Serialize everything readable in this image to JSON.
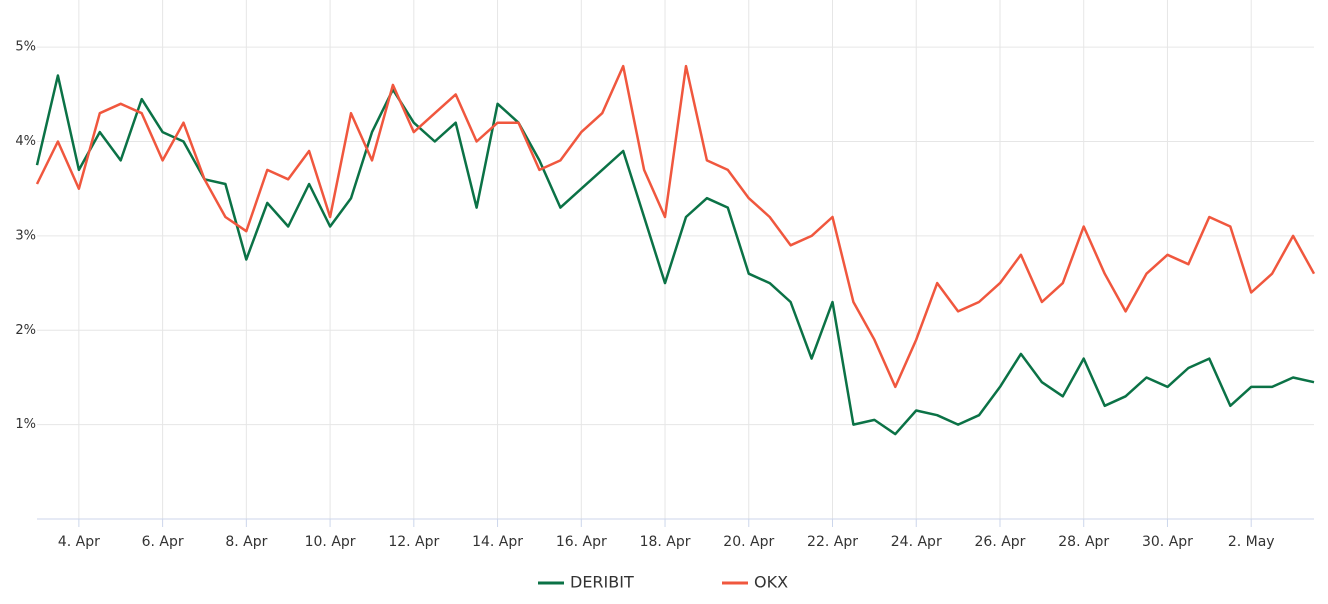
{
  "chart_data": {
    "type": "line",
    "x": [
      3,
      3.5,
      4,
      4.5,
      5,
      5.5,
      6,
      6.5,
      7,
      7.5,
      8,
      8.5,
      9,
      9.5,
      10,
      10.5,
      11,
      11.5,
      12,
      12.5,
      13,
      13.5,
      14,
      14.5,
      15,
      15.5,
      16,
      16.5,
      17,
      17.5,
      18,
      18.5,
      19,
      19.5,
      20,
      20.5,
      21,
      21.5,
      22,
      22.5,
      23,
      23.5,
      24,
      24.5,
      25,
      25.5,
      26,
      26.5,
      27,
      27.5,
      28,
      28.5,
      29,
      29.5,
      30,
      30.5,
      31,
      31.5,
      32,
      32.5,
      33,
      33.5
    ],
    "series": [
      {
        "name": "DERIBIT",
        "color": "#0b7246",
        "values": [
          3.75,
          4.7,
          3.7,
          4.1,
          3.8,
          4.45,
          4.1,
          4.0,
          3.6,
          3.55,
          2.75,
          3.35,
          3.1,
          3.55,
          3.1,
          3.4,
          4.1,
          4.55,
          4.2,
          4.0,
          4.2,
          3.3,
          4.4,
          4.2,
          3.8,
          3.3,
          3.5,
          3.7,
          3.9,
          3.2,
          2.5,
          3.2,
          3.4,
          3.3,
          2.6,
          2.5,
          2.3,
          1.7,
          2.3,
          1.0,
          1.05,
          0.9,
          1.15,
          1.1,
          1.0,
          1.1,
          1.4,
          1.75,
          1.45,
          1.3,
          1.7,
          1.2,
          1.3,
          1.5,
          1.4,
          1.6,
          1.7,
          1.2,
          1.4,
          1.4,
          1.5,
          1.45
        ]
      },
      {
        "name": "OKX",
        "color": "#f0573e",
        "values": [
          3.55,
          4.0,
          3.5,
          4.3,
          4.4,
          4.3,
          3.8,
          4.2,
          3.6,
          3.2,
          3.05,
          3.7,
          3.6,
          3.9,
          3.2,
          4.3,
          3.8,
          4.6,
          4.1,
          4.3,
          4.5,
          4.0,
          4.2,
          4.2,
          3.7,
          3.8,
          4.1,
          4.3,
          4.8,
          3.7,
          3.2,
          4.8,
          3.8,
          3.7,
          3.4,
          3.2,
          2.9,
          3.0,
          3.2,
          2.3,
          1.9,
          1.4,
          1.9,
          2.5,
          2.2,
          2.3,
          2.5,
          2.8,
          2.3,
          2.5,
          3.1,
          2.6,
          2.2,
          2.6,
          2.8,
          2.7,
          3.2,
          3.1,
          2.4,
          2.6,
          3.0,
          2.6
        ]
      }
    ],
    "xlim": [
      3,
      33.5
    ],
    "xticks": [
      {
        "value": 4,
        "label": "4. Apr"
      },
      {
        "value": 6,
        "label": "6. Apr"
      },
      {
        "value": 8,
        "label": "8. Apr"
      },
      {
        "value": 10,
        "label": "10. Apr"
      },
      {
        "value": 12,
        "label": "12. Apr"
      },
      {
        "value": 14,
        "label": "14. Apr"
      },
      {
        "value": 16,
        "label": "16. Apr"
      },
      {
        "value": 18,
        "label": "18. Apr"
      },
      {
        "value": 20,
        "label": "20. Apr"
      },
      {
        "value": 22,
        "label": "22. Apr"
      },
      {
        "value": 24,
        "label": "24. Apr"
      },
      {
        "value": 26,
        "label": "26. Apr"
      },
      {
        "value": 28,
        "label": "28. Apr"
      },
      {
        "value": 30,
        "label": "30. Apr"
      },
      {
        "value": 32,
        "label": "2. May"
      }
    ],
    "ylim": [
      0,
      5.5
    ],
    "yticks": [
      {
        "value": 1,
        "label": "1%"
      },
      {
        "value": 2,
        "label": "2%"
      },
      {
        "value": 3,
        "label": "3%"
      },
      {
        "value": 4,
        "label": "4%"
      },
      {
        "value": 5,
        "label": "5%"
      }
    ],
    "grid": true
  }
}
